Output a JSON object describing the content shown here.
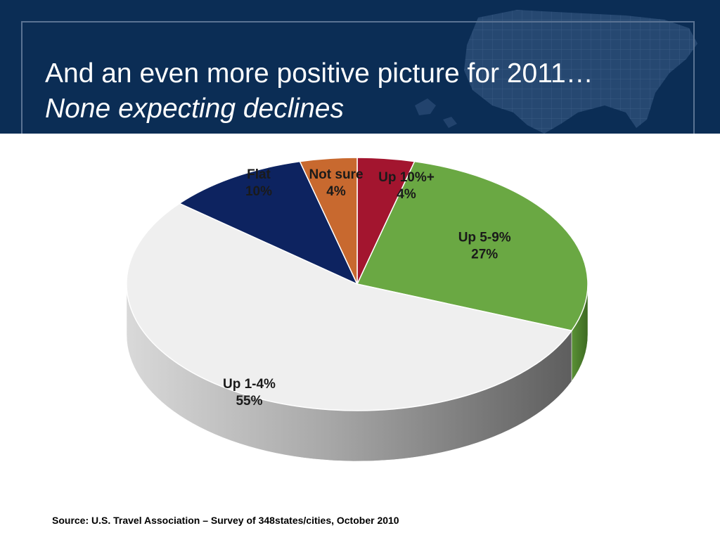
{
  "header": {
    "title_line1": "And an even more positive picture for 2011…",
    "title_line2": "None expecting declines"
  },
  "chart_data": {
    "type": "pie",
    "title": "",
    "slices": [
      {
        "label": "Up 10%+",
        "value": 4,
        "value_label": "4%",
        "color": "#a3152f"
      },
      {
        "label": "Up 5-9%",
        "value": 27,
        "value_label": "27%",
        "color": "#6aa843"
      },
      {
        "label": "Up 1-4%",
        "value": 55,
        "value_label": "55%",
        "color": "#efefef"
      },
      {
        "label": "Flat",
        "value": 10,
        "value_label": "10%",
        "color": "#0d2360"
      },
      {
        "label": "Not sure",
        "value": 4,
        "value_label": "4%",
        "color": "#c8692f"
      }
    ],
    "legend": "none"
  },
  "footer": {
    "source": "Source:  U.S. Travel Association – Survey of 348states/cities, October 2010"
  }
}
